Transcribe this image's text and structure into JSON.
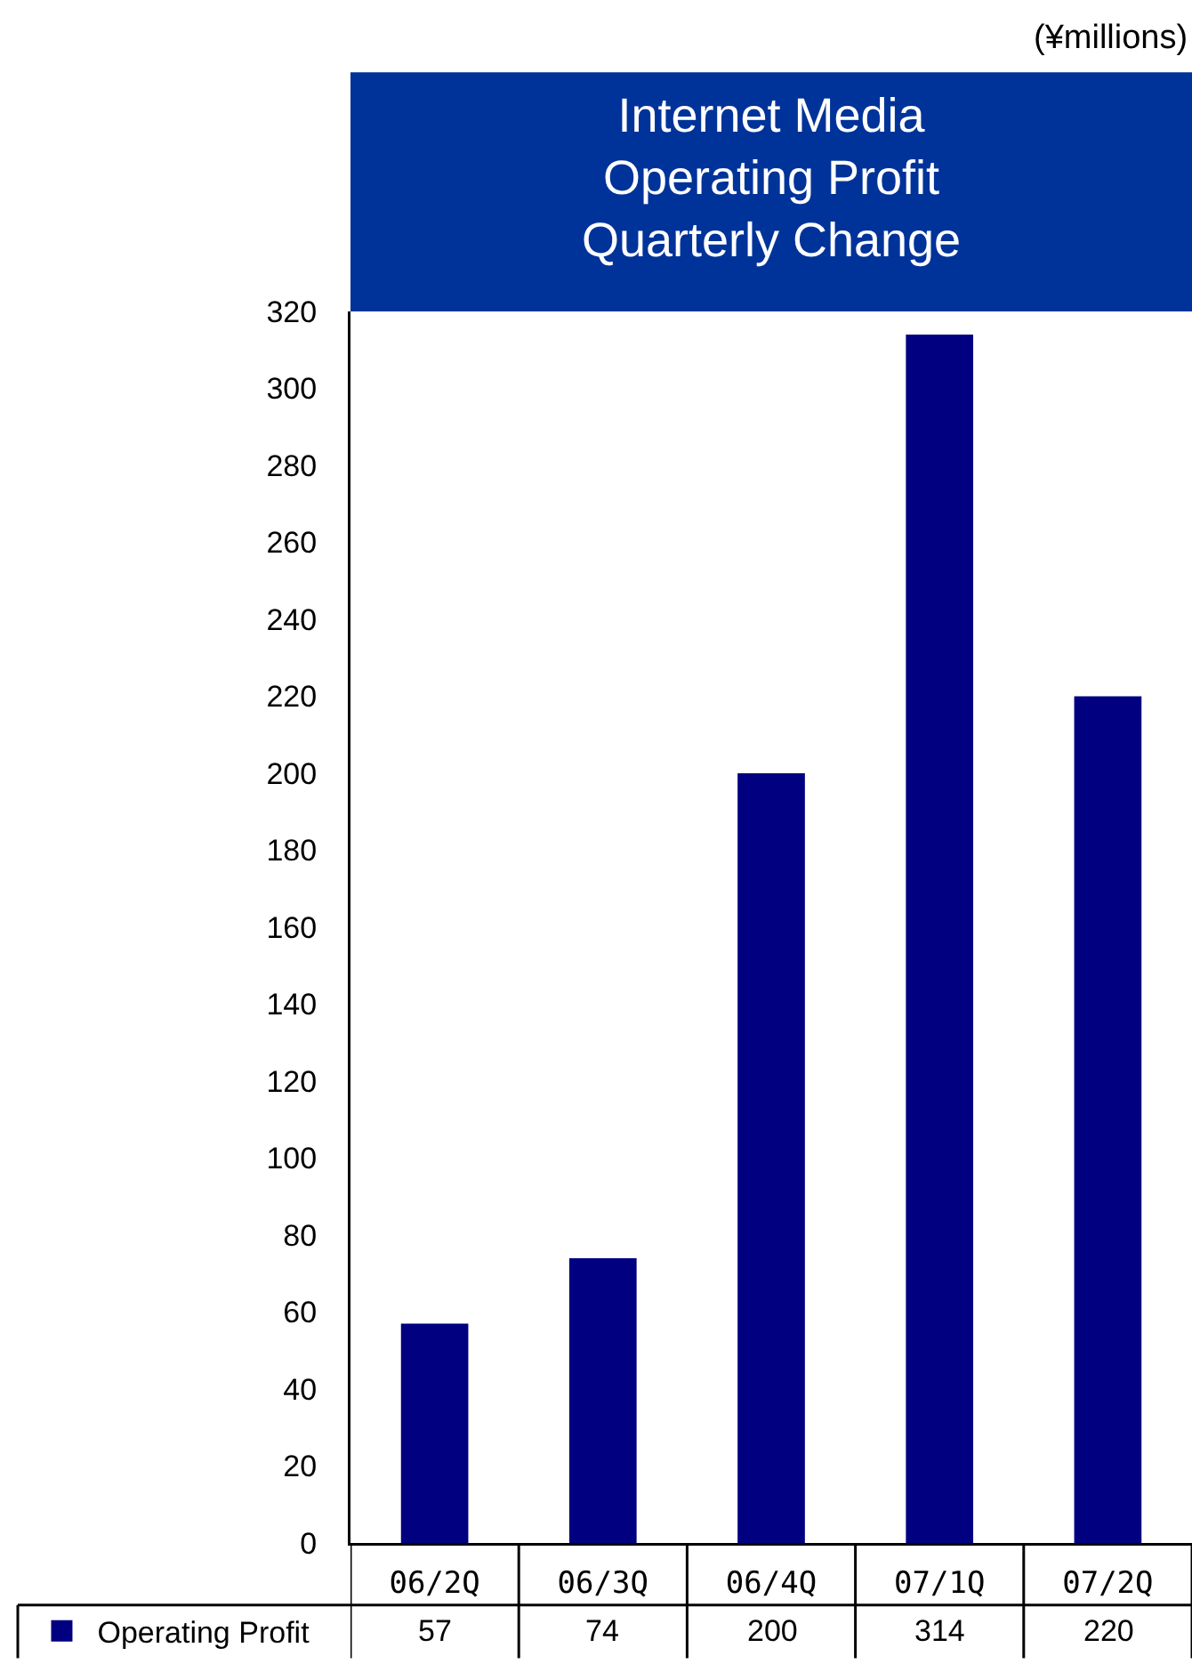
{
  "chart_data": {
    "type": "bar",
    "title": "Internet Media\nOperating Profit\nQuarterly Change",
    "annotations": [
      "(¥millions)"
    ],
    "categories": [
      "06/2Q",
      "06/3Q",
      "06/4Q",
      "07/1Q",
      "07/2Q"
    ],
    "series": [
      {
        "name": "Operating Profit",
        "color": "#000080",
        "values": [
          57,
          74,
          200,
          314,
          220
        ]
      }
    ],
    "ylim": [
      0,
      320
    ],
    "yticks": [
      0,
      20,
      40,
      60,
      80,
      100,
      120,
      140,
      160,
      180,
      200,
      220,
      240,
      260,
      280,
      300,
      320
    ],
    "grid": false,
    "legend": "bottom left",
    "data_labels": true
  }
}
